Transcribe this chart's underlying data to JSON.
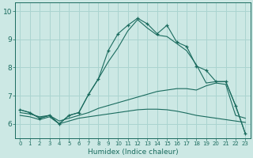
{
  "xlabel": "Humidex (Indice chaleur)",
  "background_color": "#cce8e4",
  "grid_color": "#aad4d0",
  "line_color": "#1a6b5e",
  "xlim": [
    -0.5,
    23.5
  ],
  "ylim": [
    5.5,
    10.3
  ],
  "yticks": [
    6,
    7,
    8,
    9,
    10
  ],
  "xticks": [
    0,
    1,
    2,
    3,
    4,
    5,
    6,
    7,
    8,
    9,
    10,
    11,
    12,
    13,
    14,
    15,
    16,
    17,
    18,
    19,
    20,
    21,
    22,
    23
  ],
  "main_line": [
    6.5,
    6.4,
    6.2,
    6.3,
    6.0,
    6.3,
    6.4,
    7.05,
    7.6,
    8.6,
    9.2,
    9.5,
    9.75,
    9.55,
    9.2,
    9.5,
    8.9,
    8.75,
    8.05,
    7.9,
    7.5,
    7.5,
    6.65,
    5.65
  ],
  "line2": [
    6.5,
    6.4,
    6.2,
    6.3,
    6.0,
    6.3,
    6.4,
    7.05,
    7.6,
    8.2,
    8.7,
    9.3,
    9.7,
    9.4,
    9.15,
    9.1,
    8.85,
    8.6,
    8.1,
    7.45,
    7.5,
    7.5,
    6.65,
    5.65
  ],
  "line3_upper": [
    6.4,
    6.35,
    6.25,
    6.3,
    6.1,
    6.2,
    6.3,
    6.4,
    6.55,
    6.65,
    6.75,
    6.85,
    6.95,
    7.05,
    7.15,
    7.2,
    7.25,
    7.25,
    7.2,
    7.35,
    7.45,
    7.4,
    6.3,
    6.2
  ],
  "line3_lower": [
    6.3,
    6.25,
    6.15,
    6.25,
    6.0,
    6.1,
    6.2,
    6.25,
    6.3,
    6.35,
    6.4,
    6.45,
    6.5,
    6.52,
    6.52,
    6.5,
    6.45,
    6.38,
    6.3,
    6.25,
    6.2,
    6.15,
    6.1,
    6.05
  ]
}
